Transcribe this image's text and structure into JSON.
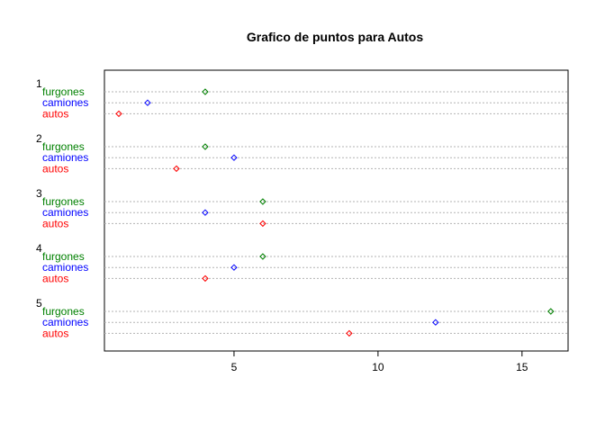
{
  "chart_data": {
    "type": "dot",
    "title": "Grafico de puntos para Autos",
    "xlabel": "",
    "ylabel": "",
    "xlim": [
      0.5,
      16.6
    ],
    "xticks": [
      5,
      10,
      15
    ],
    "grid": true,
    "series_colors": {
      "furgones": "#008000",
      "camiones": "#0000ff",
      "autos": "#ff0000"
    },
    "series_order": [
      "furgones",
      "camiones",
      "autos"
    ],
    "groups": [
      {
        "label": "1",
        "values": {
          "furgones": 4,
          "camiones": 2,
          "autos": 1
        }
      },
      {
        "label": "2",
        "values": {
          "furgones": 4,
          "camiones": 5,
          "autos": 3
        }
      },
      {
        "label": "3",
        "values": {
          "furgones": 6,
          "camiones": 4,
          "autos": 6
        }
      },
      {
        "label": "4",
        "values": {
          "furgones": 6,
          "camiones": 5,
          "autos": 4
        }
      },
      {
        "label": "5",
        "values": {
          "furgones": 16,
          "camiones": 12,
          "autos": 9
        }
      }
    ]
  }
}
